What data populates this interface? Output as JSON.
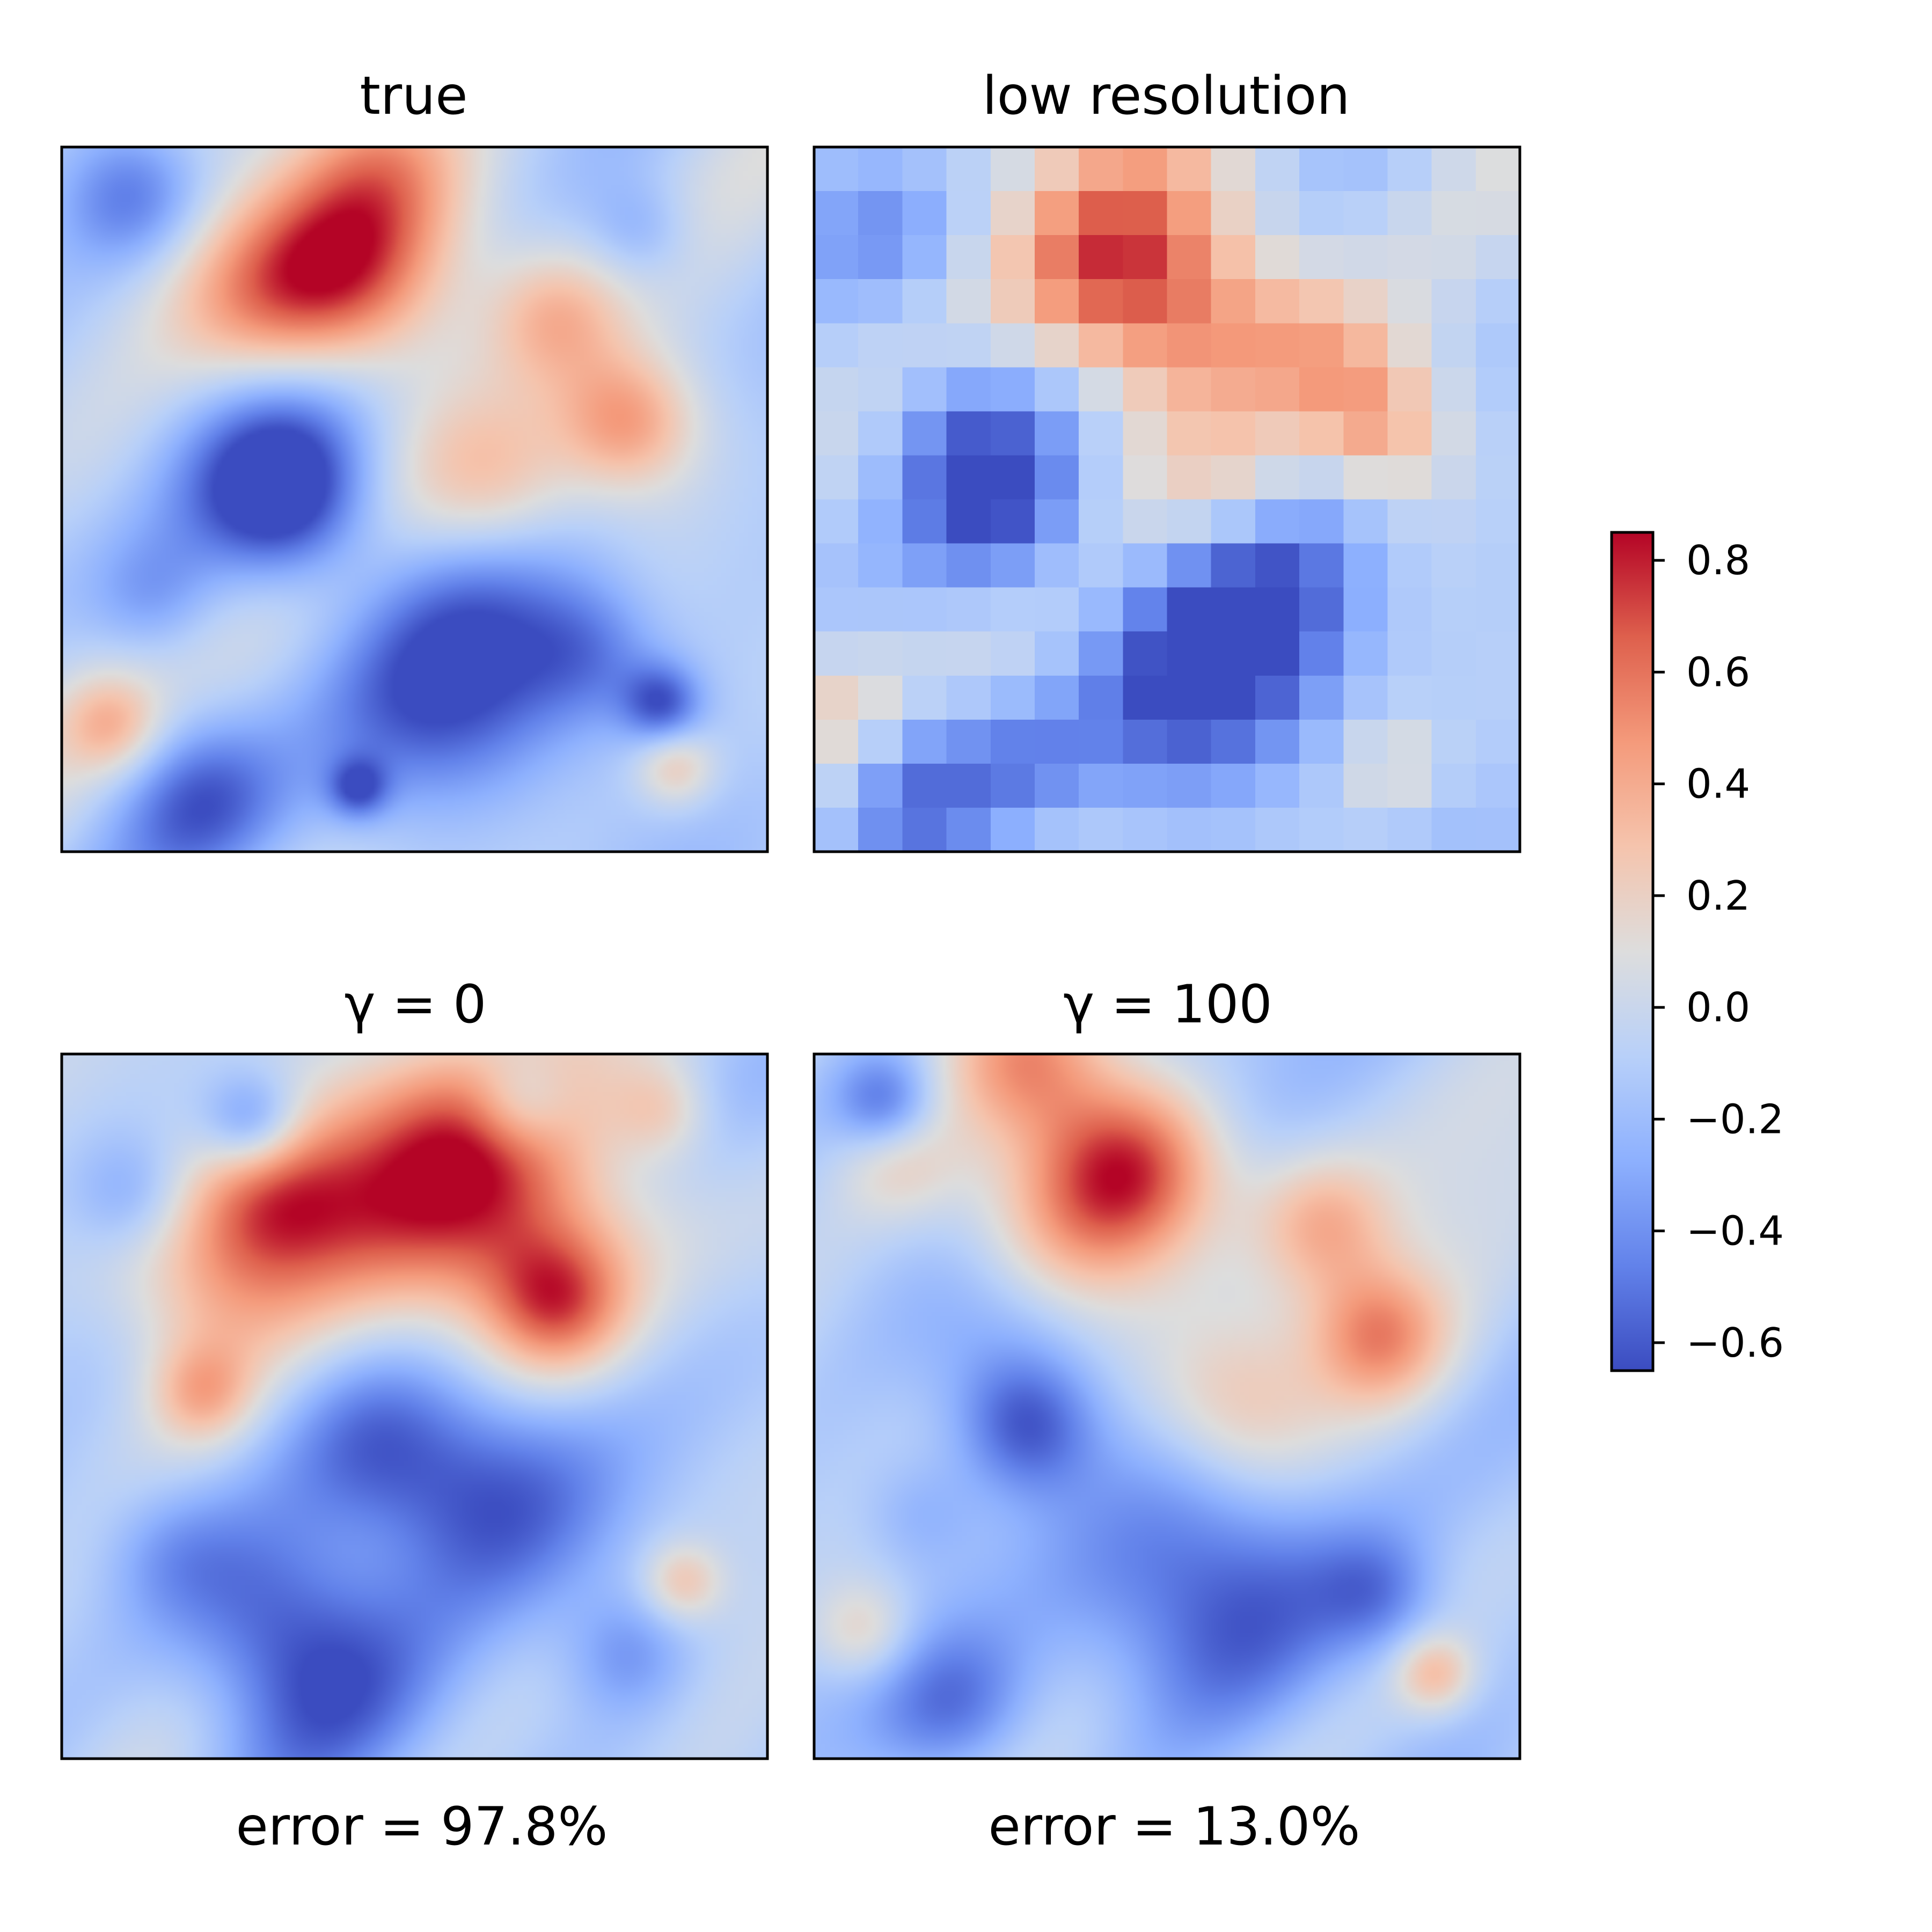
{
  "chart_data": {
    "type": "heatmap",
    "colormap": "coolwarm",
    "panels": [
      {
        "id": "true",
        "title": "true",
        "caption": "",
        "mode": "smooth",
        "seed": 11,
        "blobs": [
          [
            0.1,
            0.07,
            0.07,
            -0.4
          ],
          [
            0.45,
            0.02,
            0.09,
            0.45
          ],
          [
            0.4,
            0.17,
            0.1,
            0.75
          ],
          [
            0.28,
            0.22,
            0.1,
            0.45
          ],
          [
            0.7,
            0.24,
            0.07,
            0.4
          ],
          [
            0.8,
            0.39,
            0.07,
            0.55
          ],
          [
            0.62,
            0.48,
            0.09,
            0.4
          ],
          [
            0.32,
            0.5,
            0.08,
            -0.6
          ],
          [
            0.3,
            0.4,
            0.12,
            -0.25
          ],
          [
            0.58,
            0.76,
            0.14,
            -0.55
          ],
          [
            0.75,
            0.72,
            0.07,
            -0.3
          ],
          [
            0.85,
            0.79,
            0.04,
            -0.5
          ],
          [
            0.07,
            0.82,
            0.05,
            0.35
          ],
          [
            0.2,
            0.93,
            0.08,
            -0.4
          ],
          [
            0.42,
            0.91,
            0.03,
            -0.45
          ],
          [
            0.87,
            0.88,
            0.04,
            0.35
          ],
          [
            0.13,
            0.64,
            0.06,
            -0.2
          ],
          [
            0.82,
            0.12,
            0.05,
            -0.2
          ]
        ]
      },
      {
        "id": "low-res",
        "title": "low resolution",
        "caption": "",
        "mode": "grid",
        "seed": 11,
        "blobs": [
          [
            0.45,
            0.05,
            0.1,
            0.35
          ],
          [
            0.4,
            0.18,
            0.1,
            0.6
          ],
          [
            0.55,
            0.25,
            0.1,
            0.4
          ],
          [
            0.72,
            0.3,
            0.08,
            0.35
          ],
          [
            0.8,
            0.4,
            0.07,
            0.45
          ],
          [
            0.6,
            0.5,
            0.08,
            0.35
          ],
          [
            0.27,
            0.52,
            0.09,
            -0.45
          ],
          [
            0.2,
            0.4,
            0.08,
            -0.25
          ],
          [
            0.58,
            0.76,
            0.14,
            -0.55
          ],
          [
            0.65,
            0.6,
            0.1,
            -0.3
          ],
          [
            0.1,
            0.12,
            0.08,
            -0.3
          ],
          [
            0.15,
            0.9,
            0.08,
            -0.35
          ],
          [
            0.05,
            0.8,
            0.05,
            0.2
          ],
          [
            0.82,
            0.88,
            0.05,
            0.25
          ],
          [
            0.3,
            0.87,
            0.06,
            -0.2
          ]
        ]
      },
      {
        "id": "gamma-0",
        "title": "γ = 0",
        "caption": "error = 97.8%",
        "mode": "smooth",
        "seed": 29,
        "blobs": [
          [
            0.6,
            0.18,
            0.13,
            0.75
          ],
          [
            0.3,
            0.2,
            0.08,
            0.45
          ],
          [
            0.45,
            0.22,
            0.15,
            0.4
          ],
          [
            0.2,
            0.3,
            0.1,
            0.35
          ],
          [
            0.7,
            0.35,
            0.07,
            0.55
          ],
          [
            0.27,
            0.1,
            0.05,
            -0.45
          ],
          [
            0.65,
            0.07,
            0.05,
            -0.35
          ],
          [
            0.1,
            0.2,
            0.06,
            -0.25
          ],
          [
            0.85,
            0.08,
            0.05,
            0.3
          ],
          [
            0.6,
            0.62,
            0.12,
            -0.55
          ],
          [
            0.45,
            0.56,
            0.09,
            -0.3
          ],
          [
            0.3,
            0.8,
            0.1,
            -0.4
          ],
          [
            0.4,
            0.92,
            0.12,
            -0.35
          ],
          [
            0.2,
            0.48,
            0.05,
            0.35
          ],
          [
            0.15,
            0.7,
            0.07,
            -0.2
          ],
          [
            0.88,
            0.75,
            0.04,
            0.35
          ],
          [
            0.8,
            0.85,
            0.06,
            -0.25
          ]
        ]
      },
      {
        "id": "gamma-100",
        "title": "γ = 100",
        "caption": "error = 13.0%",
        "mode": "smooth",
        "seed": 47,
        "blobs": [
          [
            0.1,
            0.07,
            0.05,
            -0.45
          ],
          [
            0.3,
            0.01,
            0.08,
            0.5
          ],
          [
            0.45,
            0.16,
            0.09,
            0.75
          ],
          [
            0.35,
            0.24,
            0.1,
            0.4
          ],
          [
            0.72,
            0.24,
            0.07,
            0.4
          ],
          [
            0.8,
            0.4,
            0.07,
            0.55
          ],
          [
            0.6,
            0.5,
            0.09,
            0.4
          ],
          [
            0.3,
            0.53,
            0.07,
            -0.5
          ],
          [
            0.28,
            0.4,
            0.1,
            -0.25
          ],
          [
            0.58,
            0.78,
            0.14,
            -0.55
          ],
          [
            0.8,
            0.77,
            0.06,
            -0.3
          ],
          [
            0.07,
            0.82,
            0.05,
            0.3
          ],
          [
            0.2,
            0.93,
            0.08,
            -0.4
          ],
          [
            0.88,
            0.88,
            0.04,
            0.4
          ],
          [
            0.12,
            0.15,
            0.06,
            0.25
          ],
          [
            0.15,
            0.65,
            0.06,
            -0.2
          ]
        ]
      }
    ],
    "colorbar": {
      "min": -0.65,
      "max": 0.85,
      "ticks": [
        0.8,
        0.6,
        0.4,
        0.2,
        0.0,
        -0.2,
        -0.4,
        -0.6
      ],
      "tick_labels": [
        "0.8",
        "0.6",
        "0.4",
        "0.2",
        "0.0",
        "−0.2",
        "−0.4",
        "−0.6"
      ]
    }
  }
}
